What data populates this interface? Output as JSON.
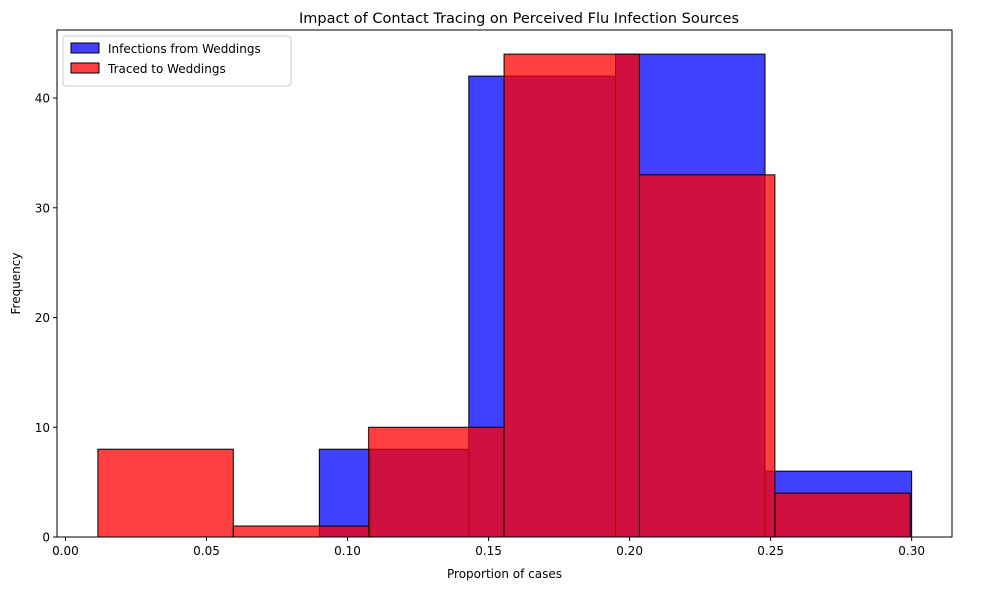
{
  "chart_data": {
    "type": "histogram",
    "title": "Impact of Contact Tracing on Perceived Flu Infection Sources",
    "xlabel": "Proportion of cases",
    "ylabel": "Frequency",
    "xlim": [
      -0.003,
      0.3143
    ],
    "ylim": [
      0,
      46.2
    ],
    "xticks": [
      0.0,
      0.05,
      0.1,
      0.15,
      0.2,
      0.25,
      0.3
    ],
    "xtick_labels": [
      "0.00",
      "0.05",
      "0.10",
      "0.15",
      "0.20",
      "0.25",
      "0.30"
    ],
    "yticks": [
      0,
      10,
      20,
      30,
      40
    ],
    "ytick_labels": [
      "0",
      "10",
      "20",
      "30",
      "40"
    ],
    "grid": false,
    "legend_position": "top-left",
    "series": [
      {
        "name": "Infections from Weddings",
        "color": "#0000ff",
        "opacity": 0.75,
        "bins": [
          {
            "x0": 0.09,
            "x1": 0.108,
            "count": 8
          },
          {
            "x0": 0.108,
            "x1": 0.143,
            "count": 8
          },
          {
            "x0": 0.143,
            "x1": 0.195,
            "count": 42
          },
          {
            "x0": 0.195,
            "x1": 0.248,
            "count": 44
          },
          {
            "x0": 0.248,
            "x1": 0.3,
            "count": 6
          }
        ]
      },
      {
        "name": "Traced to Weddings",
        "color": "#ff0000",
        "opacity": 0.75,
        "bins": [
          {
            "x0": 0.0115,
            "x1": 0.0595,
            "count": 8
          },
          {
            "x0": 0.0595,
            "x1": 0.1075,
            "count": 1
          },
          {
            "x0": 0.1075,
            "x1": 0.1555,
            "count": 10
          },
          {
            "x0": 0.1555,
            "x1": 0.2035,
            "count": 44
          },
          {
            "x0": 0.2035,
            "x1": 0.2515,
            "count": 33
          },
          {
            "x0": 0.2515,
            "x1": 0.2995,
            "count": 4
          }
        ]
      }
    ]
  }
}
